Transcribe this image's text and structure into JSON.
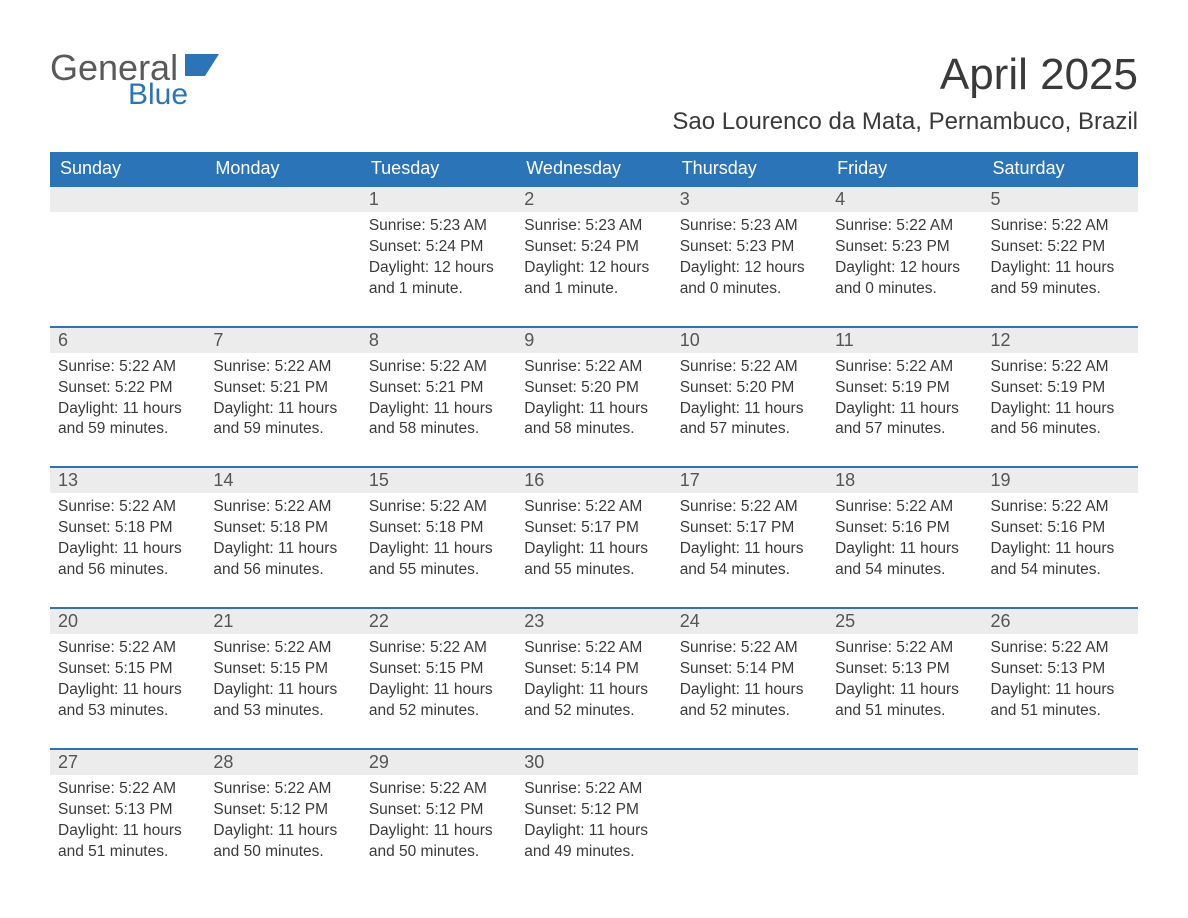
{
  "logo": {
    "text1": "General",
    "text2": "Blue",
    "shape_color": "#2b74b8",
    "text1_color": "#5a5a5a"
  },
  "title": "April 2025",
  "location": "Sao Lourenco da Mata, Pernambuco, Brazil",
  "colors": {
    "header_bg": "#2b74b8",
    "header_text": "#ffffff",
    "daynum_bg": "#ececec",
    "daynum_border": "#2b74b8",
    "body_text": "#3a3a3a",
    "background": "#ffffff"
  },
  "typography": {
    "title_fontsize": 44,
    "location_fontsize": 24,
    "header_fontsize": 18,
    "cell_fontsize": 15.5
  },
  "day_headers": [
    "Sunday",
    "Monday",
    "Tuesday",
    "Wednesday",
    "Thursday",
    "Friday",
    "Saturday"
  ],
  "weeks": [
    [
      null,
      null,
      {
        "n": "1",
        "sr": "Sunrise: 5:23 AM",
        "ss": "Sunset: 5:24 PM",
        "dl": "Daylight: 12 hours and 1 minute."
      },
      {
        "n": "2",
        "sr": "Sunrise: 5:23 AM",
        "ss": "Sunset: 5:24 PM",
        "dl": "Daylight: 12 hours and 1 minute."
      },
      {
        "n": "3",
        "sr": "Sunrise: 5:23 AM",
        "ss": "Sunset: 5:23 PM",
        "dl": "Daylight: 12 hours and 0 minutes."
      },
      {
        "n": "4",
        "sr": "Sunrise: 5:22 AM",
        "ss": "Sunset: 5:23 PM",
        "dl": "Daylight: 12 hours and 0 minutes."
      },
      {
        "n": "5",
        "sr": "Sunrise: 5:22 AM",
        "ss": "Sunset: 5:22 PM",
        "dl": "Daylight: 11 hours and 59 minutes."
      }
    ],
    [
      {
        "n": "6",
        "sr": "Sunrise: 5:22 AM",
        "ss": "Sunset: 5:22 PM",
        "dl": "Daylight: 11 hours and 59 minutes."
      },
      {
        "n": "7",
        "sr": "Sunrise: 5:22 AM",
        "ss": "Sunset: 5:21 PM",
        "dl": "Daylight: 11 hours and 59 minutes."
      },
      {
        "n": "8",
        "sr": "Sunrise: 5:22 AM",
        "ss": "Sunset: 5:21 PM",
        "dl": "Daylight: 11 hours and 58 minutes."
      },
      {
        "n": "9",
        "sr": "Sunrise: 5:22 AM",
        "ss": "Sunset: 5:20 PM",
        "dl": "Daylight: 11 hours and 58 minutes."
      },
      {
        "n": "10",
        "sr": "Sunrise: 5:22 AM",
        "ss": "Sunset: 5:20 PM",
        "dl": "Daylight: 11 hours and 57 minutes."
      },
      {
        "n": "11",
        "sr": "Sunrise: 5:22 AM",
        "ss": "Sunset: 5:19 PM",
        "dl": "Daylight: 11 hours and 57 minutes."
      },
      {
        "n": "12",
        "sr": "Sunrise: 5:22 AM",
        "ss": "Sunset: 5:19 PM",
        "dl": "Daylight: 11 hours and 56 minutes."
      }
    ],
    [
      {
        "n": "13",
        "sr": "Sunrise: 5:22 AM",
        "ss": "Sunset: 5:18 PM",
        "dl": "Daylight: 11 hours and 56 minutes."
      },
      {
        "n": "14",
        "sr": "Sunrise: 5:22 AM",
        "ss": "Sunset: 5:18 PM",
        "dl": "Daylight: 11 hours and 56 minutes."
      },
      {
        "n": "15",
        "sr": "Sunrise: 5:22 AM",
        "ss": "Sunset: 5:18 PM",
        "dl": "Daylight: 11 hours and 55 minutes."
      },
      {
        "n": "16",
        "sr": "Sunrise: 5:22 AM",
        "ss": "Sunset: 5:17 PM",
        "dl": "Daylight: 11 hours and 55 minutes."
      },
      {
        "n": "17",
        "sr": "Sunrise: 5:22 AM",
        "ss": "Sunset: 5:17 PM",
        "dl": "Daylight: 11 hours and 54 minutes."
      },
      {
        "n": "18",
        "sr": "Sunrise: 5:22 AM",
        "ss": "Sunset: 5:16 PM",
        "dl": "Daylight: 11 hours and 54 minutes."
      },
      {
        "n": "19",
        "sr": "Sunrise: 5:22 AM",
        "ss": "Sunset: 5:16 PM",
        "dl": "Daylight: 11 hours and 54 minutes."
      }
    ],
    [
      {
        "n": "20",
        "sr": "Sunrise: 5:22 AM",
        "ss": "Sunset: 5:15 PM",
        "dl": "Daylight: 11 hours and 53 minutes."
      },
      {
        "n": "21",
        "sr": "Sunrise: 5:22 AM",
        "ss": "Sunset: 5:15 PM",
        "dl": "Daylight: 11 hours and 53 minutes."
      },
      {
        "n": "22",
        "sr": "Sunrise: 5:22 AM",
        "ss": "Sunset: 5:15 PM",
        "dl": "Daylight: 11 hours and 52 minutes."
      },
      {
        "n": "23",
        "sr": "Sunrise: 5:22 AM",
        "ss": "Sunset: 5:14 PM",
        "dl": "Daylight: 11 hours and 52 minutes."
      },
      {
        "n": "24",
        "sr": "Sunrise: 5:22 AM",
        "ss": "Sunset: 5:14 PM",
        "dl": "Daylight: 11 hours and 52 minutes."
      },
      {
        "n": "25",
        "sr": "Sunrise: 5:22 AM",
        "ss": "Sunset: 5:13 PM",
        "dl": "Daylight: 11 hours and 51 minutes."
      },
      {
        "n": "26",
        "sr": "Sunrise: 5:22 AM",
        "ss": "Sunset: 5:13 PM",
        "dl": "Daylight: 11 hours and 51 minutes."
      }
    ],
    [
      {
        "n": "27",
        "sr": "Sunrise: 5:22 AM",
        "ss": "Sunset: 5:13 PM",
        "dl": "Daylight: 11 hours and 51 minutes."
      },
      {
        "n": "28",
        "sr": "Sunrise: 5:22 AM",
        "ss": "Sunset: 5:12 PM",
        "dl": "Daylight: 11 hours and 50 minutes."
      },
      {
        "n": "29",
        "sr": "Sunrise: 5:22 AM",
        "ss": "Sunset: 5:12 PM",
        "dl": "Daylight: 11 hours and 50 minutes."
      },
      {
        "n": "30",
        "sr": "Sunrise: 5:22 AM",
        "ss": "Sunset: 5:12 PM",
        "dl": "Daylight: 11 hours and 49 minutes."
      },
      null,
      null,
      null
    ]
  ]
}
